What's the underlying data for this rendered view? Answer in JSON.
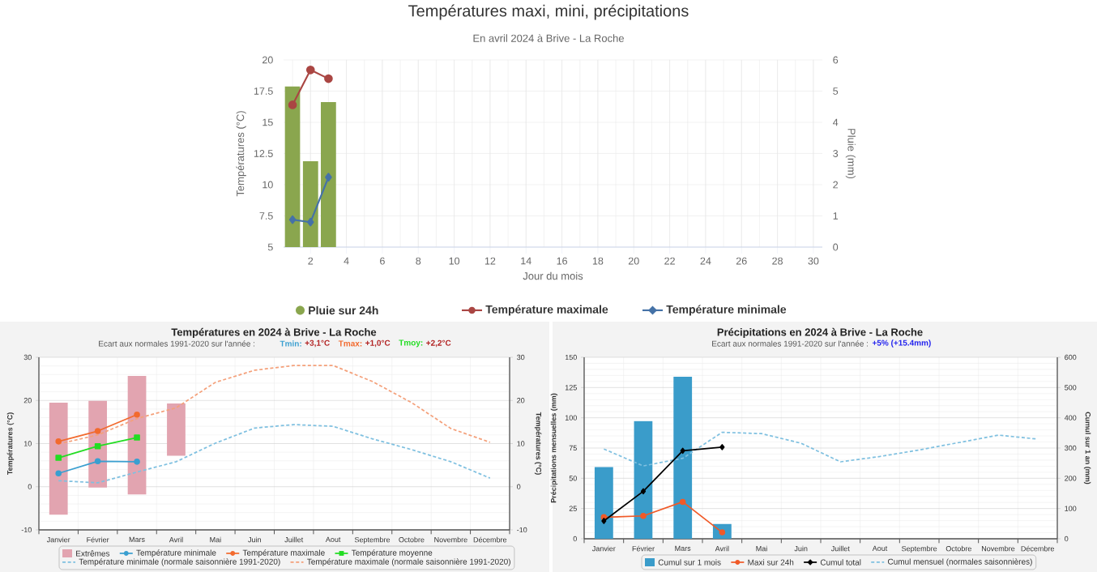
{
  "chart_data": [
    {
      "type": "line",
      "title": "Températures maxi, mini, précipitations",
      "subtitle": "En avril 2024 à Brive - La Roche",
      "xlabel": "Jour du mois",
      "ylabel": "Températures (°C)",
      "y2label": "Pluie (mm)",
      "x": [
        1,
        2,
        3
      ],
      "xlim": [
        0.5,
        30.5
      ],
      "xticks": [
        2,
        4,
        6,
        8,
        10,
        12,
        14,
        16,
        18,
        20,
        22,
        24,
        26,
        28,
        30
      ],
      "ylim": [
        5,
        20
      ],
      "yticks": [
        5,
        7.5,
        10,
        12.5,
        15,
        17.5,
        20
      ],
      "y2lim": [
        0,
        6
      ],
      "y2ticks": [
        0,
        1,
        2,
        3,
        4,
        5,
        6
      ],
      "grid": true,
      "legend": "bottom",
      "series": [
        {
          "name": "Pluie sur 24h",
          "type": "bar",
          "axis": "y2",
          "color": "#8aa64e",
          "values": [
            5.15,
            2.75,
            4.65
          ]
        },
        {
          "name": "Température maximale",
          "color": "#aa4643",
          "marker": "circle",
          "values": [
            16.4,
            19.2,
            18.5
          ]
        },
        {
          "name": "Température minimale",
          "color": "#4572a7",
          "marker": "diamond",
          "values": [
            7.2,
            7.0,
            10.6
          ]
        }
      ]
    },
    {
      "type": "line",
      "title": "Températures en 2024 à Brive - La Roche",
      "subtitle": "Ecart aux normales 1991-2020 sur l'année :",
      "annotations": [
        "Tmin:",
        "+3,1°C",
        "Tmax:",
        "+1,0°C",
        "Tmoy:",
        "+2,2°C"
      ],
      "categories": [
        "Janvier",
        "Février",
        "Mars",
        "Avril",
        "Mai",
        "Juin",
        "Juillet",
        "Aout",
        "Septembre",
        "Octobre",
        "Novembre",
        "Décembre"
      ],
      "ylabel": "Températures (°C)",
      "y2label": "Températures (°C)",
      "ylim": [
        -10,
        30
      ],
      "yticks": [
        -10,
        0,
        10,
        20,
        30
      ],
      "y2lim": [
        -10,
        30
      ],
      "y2ticks": [
        -10,
        0,
        10,
        20,
        30
      ],
      "grid": true,
      "legend": "bottom",
      "series": [
        {
          "name": "Extrêmes",
          "type": "bar",
          "color": "#e2a4b0",
          "base": [
            -6.5,
            -0.2,
            -1.8,
            7.2,
            null,
            null,
            null,
            null,
            null,
            null,
            null,
            null
          ],
          "values": [
            26.0,
            20.1,
            27.5,
            12.1,
            null,
            null,
            null,
            null,
            null,
            null,
            null,
            null
          ]
        },
        {
          "name": "Température minimale",
          "color": "#3a9fd0",
          "marker": "circle",
          "values": [
            3.1,
            5.9,
            5.8,
            null,
            null,
            null,
            null,
            null,
            null,
            null,
            null,
            null
          ]
        },
        {
          "name": "Température maximale",
          "color": "#f26a2e",
          "marker": "circle",
          "values": [
            10.5,
            12.9,
            16.7,
            null,
            null,
            null,
            null,
            null,
            null,
            null,
            null,
            null
          ]
        },
        {
          "name": "Température moyenne",
          "color": "#22dd22",
          "marker": "square",
          "values": [
            6.7,
            9.4,
            11.4,
            null,
            null,
            null,
            null,
            null,
            null,
            null,
            null,
            null
          ]
        },
        {
          "name": "Température minimale (normale saisonnière 1991-2020)",
          "color": "#7fc0e0",
          "line_style": "dashed",
          "values": [
            1.4,
            0.9,
            3.4,
            5.8,
            10.1,
            13.6,
            14.4,
            14.0,
            11.1,
            8.6,
            5.8,
            2.0
          ]
        },
        {
          "name": "Température maximale (normale saisonnière 1991-2020)",
          "color": "#f4a07a",
          "line_style": "dashed",
          "values": [
            9.9,
            12.0,
            15.8,
            18.3,
            24.2,
            27.0,
            28.1,
            28.1,
            24.4,
            19.5,
            13.5,
            10.3
          ]
        }
      ]
    },
    {
      "type": "bar",
      "title": "Précipitations en 2024 à Brive - La Roche",
      "subtitle": "Ecart aux normales 1991-2020 sur l'année :",
      "annotations": [
        "+5% (+15.4mm)"
      ],
      "categories": [
        "Janvier",
        "Février",
        "Mars",
        "Avril",
        "Mai",
        "Juin",
        "Juillet",
        "Aout",
        "Septembre",
        "Octobre",
        "Novembre",
        "Décembre"
      ],
      "ylabel": "Précipitations mensuelles (mm)",
      "y2label": "Cumul sur 1 an (mm)",
      "ylim": [
        0,
        150
      ],
      "yticks": [
        0,
        25,
        50,
        75,
        100,
        125,
        150
      ],
      "y2lim": [
        0,
        600
      ],
      "y2ticks": [
        0,
        100,
        200,
        300,
        400,
        500,
        600
      ],
      "grid": true,
      "legend": "bottom",
      "series": [
        {
          "name": "Cumul sur 1 mois",
          "color": "#3a9cca",
          "values": [
            59.3,
            97.2,
            134.0,
            12.3,
            null,
            null,
            null,
            null,
            null,
            null,
            null,
            null
          ]
        },
        {
          "name": "Maxi sur 24h",
          "type": "line",
          "color": "#f05a28",
          "marker": "circle",
          "values": [
            17.8,
            18.9,
            30.5,
            5.3,
            null,
            null,
            null,
            null,
            null,
            null,
            null,
            null
          ]
        },
        {
          "name": "Cumul total",
          "type": "line",
          "axis": "y2",
          "color": "#000000",
          "marker": "diamond",
          "values": [
            59,
            157,
            291,
            303,
            null,
            null,
            null,
            null,
            null,
            null,
            null,
            null
          ]
        },
        {
          "name": "Cumul mensuel (normales saisonnières)",
          "type": "line",
          "color": "#7fc0e0",
          "line_style": "dashed",
          "values": [
            74.2,
            60.2,
            66.5,
            88.0,
            86.9,
            79.0,
            63.6,
            68.0,
            73.4,
            79.5,
            85.7,
            82.4
          ]
        }
      ]
    }
  ]
}
